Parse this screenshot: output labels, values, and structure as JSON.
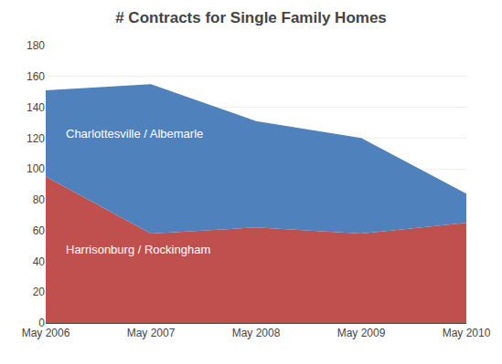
{
  "chart_data": {
    "type": "area",
    "title": "# Contracts for Single Family Homes",
    "categories": [
      "May 2006",
      "May 2007",
      "May 2008",
      "May 2009",
      "May 2010"
    ],
    "series": [
      {
        "name": "Harrisonburg / Rockingham",
        "color": "#C0504D",
        "values": [
          95,
          58,
          62,
          58,
          65
        ]
      },
      {
        "name": "Charlottesville / Albemarle",
        "color": "#4F81BD",
        "values": [
          56,
          97,
          69,
          62,
          19
        ]
      }
    ],
    "stacked": true,
    "ylim": [
      0,
      180
    ],
    "yticks": [
      0,
      20,
      40,
      60,
      80,
      100,
      120,
      140,
      160,
      180
    ],
    "grid": true
  }
}
